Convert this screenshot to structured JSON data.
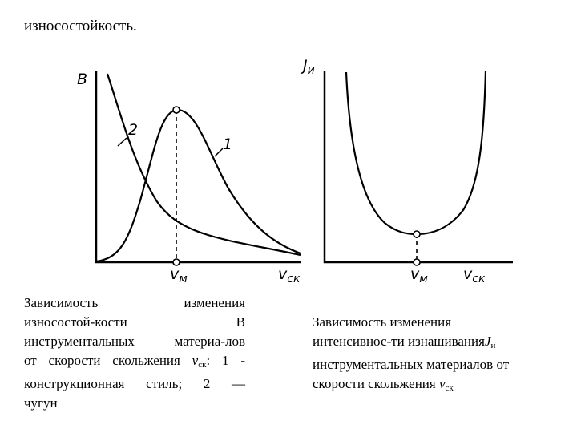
{
  "title": "износостойкость.",
  "left": {
    "labels": {
      "y_axis": "B",
      "curve_2": "2",
      "curve_1": "1",
      "x_mark": "v",
      "x_mark_sub": "м",
      "x_axis": "v",
      "x_axis_sub": "ск"
    },
    "caption": [
      "Зависимость изменения",
      "износостой-кости В",
      "инструментальных материа-лов",
      [
        "от скорости скольжения ",
        "ν",
        "ск",
        ": 1 -"
      ],
      "конструкционная стиль; 2 —",
      "чугун"
    ]
  },
  "right": {
    "labels": {
      "y_axis": "J",
      "y_axis_sub": "и",
      "x_mark": "v",
      "x_mark_sub": "м",
      "x_axis": "v",
      "x_axis_sub": "ск"
    },
    "caption": [
      "Зависимость изменения",
      [
        "интенсивнос-ти изнашивания",
        "J",
        "и"
      ],
      "инструментальных материалов от",
      [
        "скорости скольжения ",
        "ν",
        "ск"
      ]
    ]
  }
}
